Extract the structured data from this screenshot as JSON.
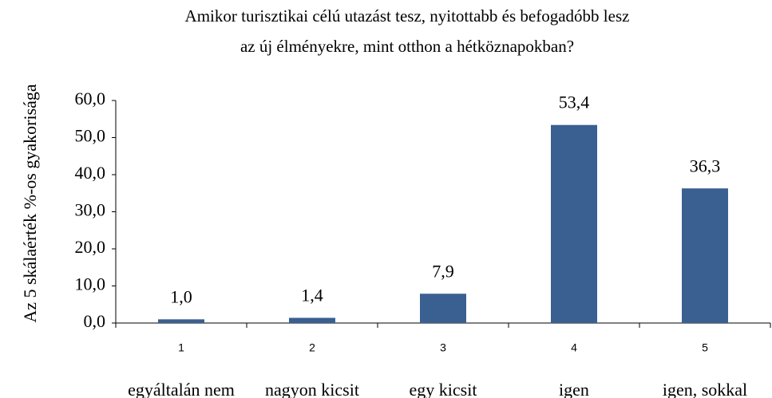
{
  "chart_data": {
    "type": "bar",
    "title_lines": [
      "Amikor turisztikai célú utazást tesz, nyitottabb és befogadóbb lesz",
      "az új élményekre, mint otthon a hétköznapokban?"
    ],
    "y_label": "Az 5 skálaérték %-os gyakorisága",
    "categories": [
      "1",
      "2",
      "3",
      "4",
      "5"
    ],
    "category_descriptions": [
      "egyáltalán nem",
      "nagyon kicsit",
      "egy kicsit",
      "igen",
      "igen, sokkal"
    ],
    "values": [
      1.0,
      1.4,
      7.9,
      53.4,
      36.3
    ],
    "value_labels": [
      "1,0",
      "1,4",
      "7,9",
      "53,4",
      "36,3"
    ],
    "color": "#3a5f91",
    "ylim": [
      0,
      60
    ],
    "yticks": [
      {
        "value": 0,
        "label": "0,0"
      },
      {
        "value": 10,
        "label": "10,0"
      },
      {
        "value": 20,
        "label": "20,0"
      },
      {
        "value": 30,
        "label": "30,0"
      },
      {
        "value": 40,
        "label": "40,0"
      },
      {
        "value": 50,
        "label": "50,0"
      },
      {
        "value": 60,
        "label": "60,0"
      }
    ],
    "grid": false
  }
}
